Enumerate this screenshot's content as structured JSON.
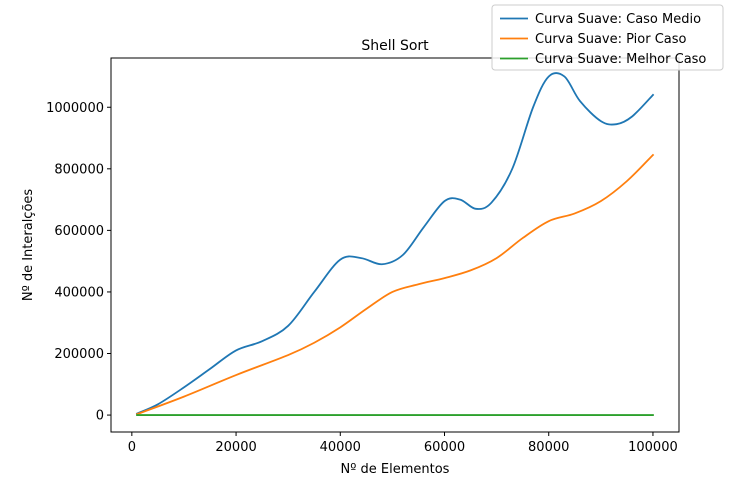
{
  "chart_data": {
    "type": "line",
    "title": "Shell Sort",
    "xlabel": "Nº de Elementos",
    "ylabel": "Nº de Interalções",
    "xlim": [
      -4000,
      105000
    ],
    "ylim": [
      -55000,
      1160000
    ],
    "xticks": [
      0,
      20000,
      40000,
      60000,
      80000,
      100000
    ],
    "yticks": [
      0,
      200000,
      400000,
      600000,
      800000,
      1000000
    ],
    "legend_position": "top-right",
    "grid": false,
    "series": [
      {
        "name": "Curva Suave: Caso Medio",
        "color": "#1f77b4",
        "points": [
          [
            1000,
            5000
          ],
          [
            5000,
            35000
          ],
          [
            10000,
            90000
          ],
          [
            15000,
            150000
          ],
          [
            20000,
            210000
          ],
          [
            25000,
            240000
          ],
          [
            30000,
            290000
          ],
          [
            35000,
            400000
          ],
          [
            40000,
            505000
          ],
          [
            44000,
            510000
          ],
          [
            48000,
            490000
          ],
          [
            52000,
            520000
          ],
          [
            56000,
            610000
          ],
          [
            60000,
            695000
          ],
          [
            63000,
            700000
          ],
          [
            66000,
            670000
          ],
          [
            69000,
            690000
          ],
          [
            73000,
            800000
          ],
          [
            77000,
            1000000
          ],
          [
            80000,
            1100000
          ],
          [
            83000,
            1100000
          ],
          [
            86000,
            1020000
          ],
          [
            90000,
            955000
          ],
          [
            93000,
            945000
          ],
          [
            96000,
            970000
          ],
          [
            100000,
            1040000
          ]
        ]
      },
      {
        "name": "Curva Suave: Pior Caso",
        "color": "#ff7f0e",
        "points": [
          [
            1000,
            3000
          ],
          [
            10000,
            60000
          ],
          [
            20000,
            130000
          ],
          [
            30000,
            195000
          ],
          [
            35000,
            235000
          ],
          [
            40000,
            285000
          ],
          [
            45000,
            345000
          ],
          [
            50000,
            400000
          ],
          [
            55000,
            425000
          ],
          [
            60000,
            445000
          ],
          [
            65000,
            470000
          ],
          [
            70000,
            510000
          ],
          [
            75000,
            575000
          ],
          [
            80000,
            630000
          ],
          [
            85000,
            655000
          ],
          [
            90000,
            695000
          ],
          [
            95000,
            760000
          ],
          [
            100000,
            845000
          ]
        ]
      },
      {
        "name": "Curva Suave: Melhor Caso",
        "color": "#2ca02c",
        "points": [
          [
            1000,
            0
          ],
          [
            100000,
            0
          ]
        ]
      }
    ]
  }
}
